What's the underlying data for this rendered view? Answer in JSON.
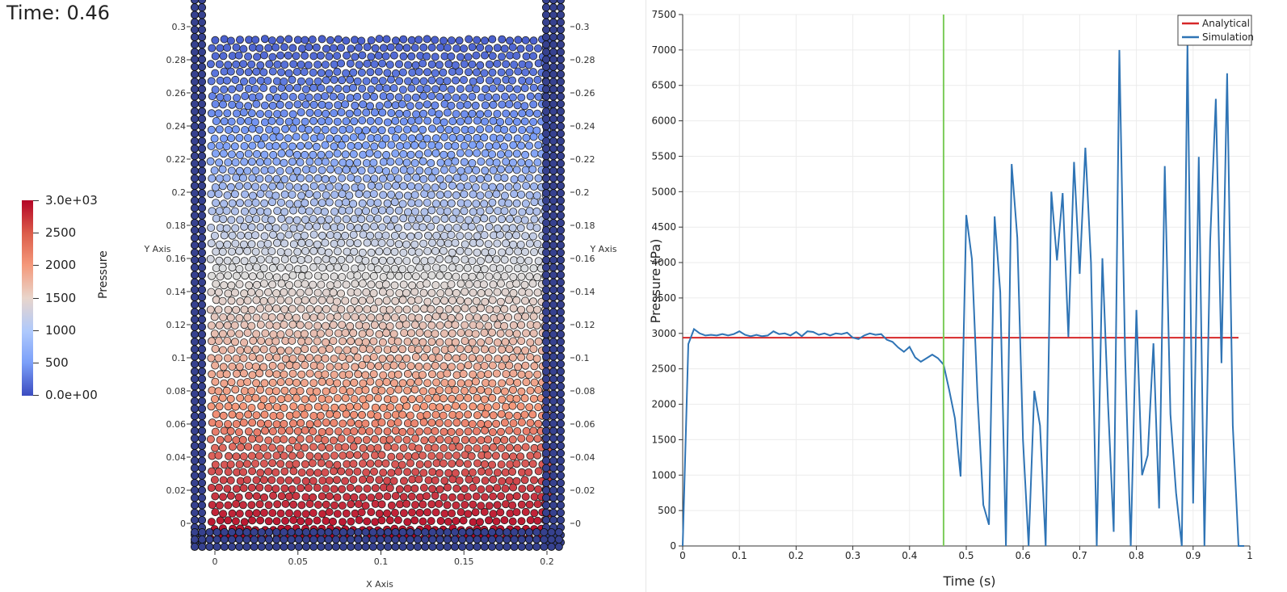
{
  "time_label": "Time: 0.46",
  "colorbar": {
    "title": "Pressure",
    "labels": [
      "3.0e+03",
      "2500",
      "2000",
      "1500",
      "1000",
      "500",
      "0.0e+00"
    ],
    "colors": [
      "#3b4cc0",
      "#7b9ff9",
      "#dddddd",
      "#f4987a",
      "#b40426"
    ]
  },
  "particle_view": {
    "x_axis_title": "X Axis",
    "y_axis_title_left": "Y Axis",
    "y_axis_title_right": "Y Axis",
    "x_ticks": [
      "0",
      "0.05",
      "0.1",
      "0.15",
      "0.2"
    ],
    "y_ticks": [
      "0",
      "0.02",
      "0.04",
      "0.06",
      "0.08",
      "0.1",
      "0.12",
      "0.14",
      "0.16",
      "0.18",
      "0.2",
      "0.22",
      "0.24",
      "0.26",
      "0.28",
      "0.3"
    ],
    "wall_color": "#36418f"
  },
  "chart_data": {
    "type": "line",
    "title": "",
    "xlabel": "Time (s)",
    "ylabel": "Pressure (Pa)",
    "xlim": [
      0,
      1
    ],
    "ylim": [
      0,
      7500
    ],
    "x_ticks": [
      "0",
      "0.1",
      "0.2",
      "0.3",
      "0.4",
      "0.5",
      "0.6",
      "0.7",
      "0.8",
      "0.9",
      "1"
    ],
    "y_ticks": [
      "0",
      "500",
      "1000",
      "1500",
      "2000",
      "2500",
      "3000",
      "3500",
      "4000",
      "4500",
      "5000",
      "5500",
      "6000",
      "6500",
      "7000",
      "7500"
    ],
    "grid": true,
    "legend_position": "top-right",
    "current_time": 0.46,
    "current_time_color": "#7ccc5a",
    "series": [
      {
        "name": "Analytical",
        "color": "#d62728",
        "x": [
          0,
          0.98
        ],
        "y": [
          2940,
          2940
        ]
      },
      {
        "name": "Simulation",
        "color": "#2f74b5",
        "x": [
          0,
          0.01,
          0.02,
          0.03,
          0.04,
          0.05,
          0.06,
          0.07,
          0.08,
          0.09,
          0.1,
          0.11,
          0.12,
          0.13,
          0.14,
          0.15,
          0.16,
          0.17,
          0.18,
          0.19,
          0.2,
          0.21,
          0.22,
          0.23,
          0.24,
          0.25,
          0.26,
          0.27,
          0.28,
          0.29,
          0.3,
          0.31,
          0.32,
          0.33,
          0.34,
          0.35,
          0.36,
          0.37,
          0.38,
          0.39,
          0.4,
          0.41,
          0.42,
          0.43,
          0.44,
          0.45,
          0.46,
          0.47,
          0.48,
          0.49,
          0.5,
          0.51,
          0.52,
          0.53,
          0.54,
          0.55,
          0.56,
          0.57,
          0.58,
          0.59,
          0.6,
          0.61,
          0.62,
          0.63,
          0.64,
          0.65,
          0.66,
          0.67,
          0.68,
          0.69,
          0.7,
          0.71,
          0.72,
          0.73,
          0.74,
          0.75,
          0.76,
          0.77,
          0.78,
          0.79,
          0.8,
          0.81,
          0.82,
          0.83,
          0.84,
          0.85,
          0.86,
          0.87,
          0.88,
          0.89,
          0.9,
          0.91,
          0.92,
          0.93,
          0.94,
          0.95,
          0.96,
          0.97,
          0.98,
          0.99
        ],
        "y": [
          0,
          2850,
          3060,
          3000,
          2970,
          2980,
          2970,
          2990,
          2970,
          2990,
          3030,
          2980,
          2960,
          2980,
          2960,
          2970,
          3030,
          2990,
          3000,
          2970,
          3020,
          2960,
          3030,
          3020,
          2980,
          3000,
          2970,
          3000,
          2990,
          3010,
          2940,
          2920,
          2970,
          3000,
          2980,
          2990,
          2910,
          2880,
          2800,
          2740,
          2810,
          2660,
          2600,
          2650,
          2700,
          2650,
          2560,
          2200,
          1800,
          980,
          4670,
          4050,
          2100,
          580,
          300,
          4650,
          3580,
          0,
          5390,
          4350,
          1500,
          0,
          2190,
          1700,
          0,
          5000,
          4030,
          4980,
          2950,
          5420,
          3840,
          5620,
          4000,
          0,
          4060,
          2000,
          200,
          7000,
          2700,
          0,
          3330,
          1000,
          1280,
          2860,
          530,
          5360,
          1860,
          750,
          0,
          7100,
          600,
          5490,
          0,
          4300,
          6310,
          2580,
          6670,
          1700,
          0,
          0
        ]
      }
    ]
  }
}
